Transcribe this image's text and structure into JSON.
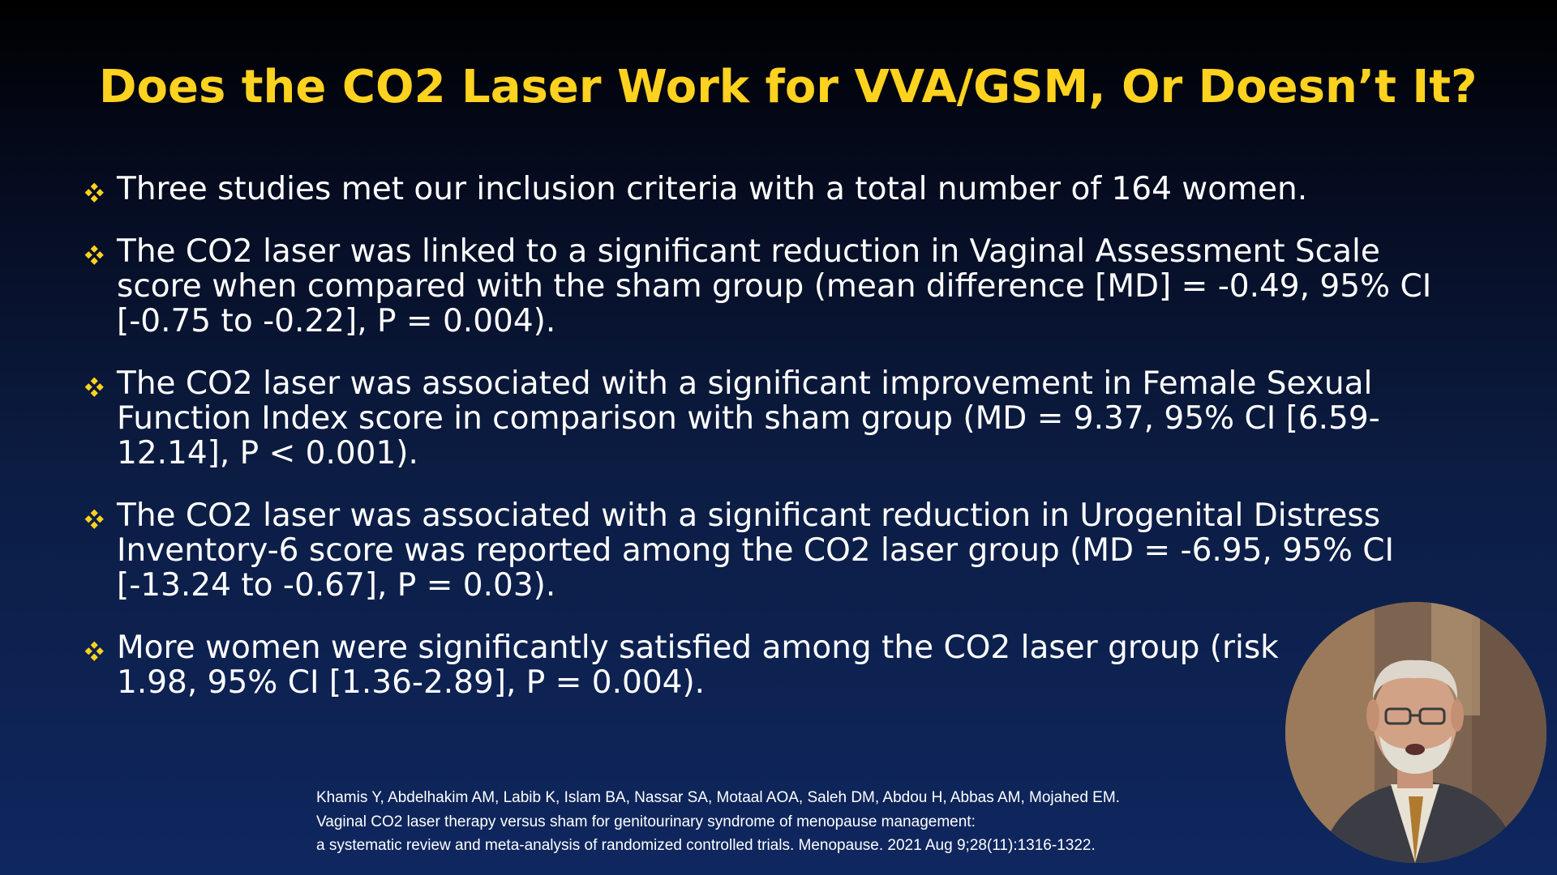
{
  "slide": {
    "title": "Does the CO2 Laser Work for VVA/GSM, Or Doesn’t It?",
    "bullets": [
      {
        "lines": [
          "Three studies met our inclusion criteria with a total number of 164 women."
        ]
      },
      {
        "lines": [
          "The CO2 laser was linked to a significant reduction in Vaginal Assessment Scale",
          "score when compared with the sham group (mean difference [MD] = -0.49, 95% CI",
          "[-0.75 to -0.22], P = 0.004)."
        ]
      },
      {
        "lines": [
          "The CO2 laser was associated with a significant improvement in Female Sexual",
          "Function Index score in comparison with sham group (MD = 9.37, 95% CI [6.59-",
          "12.14], P < 0.001)."
        ]
      },
      {
        "lines": [
          "The CO2 laser was associated with a significant reduction in Urogenital Distress",
          "Inventory-6 score was reported among the CO2 laser group (MD = -6.95, 95% CI",
          "[-13.24 to -0.67], P = 0.03)."
        ]
      },
      {
        "lines": [
          "More women were significantly satisfied among the CO2 laser group (risk",
          "1.98, 95% CI [1.36-2.89], P = 0.004)."
        ]
      }
    ],
    "citation": [
      "Khamis Y, Abdelhakim AM, Labib K, Islam BA, Nassar SA, Motaal AOA, Saleh DM, Abdou H, Abbas AM, Mojahed EM.",
      "Vaginal CO2 laser therapy versus sham for genitourinary syndrome of menopause management:",
      "a systematic review and meta-analysis of randomized controlled trials. Menopause. 2021 Aug 9;28(11):1316-1322."
    ]
  },
  "icons": {
    "bullet": "diamond-bullet-icon",
    "webcam": "presenter-video-feed"
  },
  "colors": {
    "title": "#ffd21f",
    "bullet_marker": "#ffd21f",
    "body_text": "#ffffff",
    "background_top": "#000000",
    "background_bottom": "#0f2760"
  }
}
